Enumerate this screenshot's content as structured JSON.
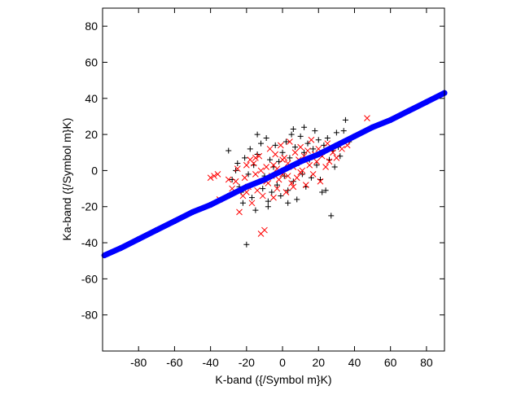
{
  "chart_data": {
    "type": "scatter",
    "title": "",
    "xlabel": "K-band ({/Symbol m}K)",
    "ylabel": "Ka-band ({/Symbol m}K)",
    "xlim": [
      -100,
      90
    ],
    "ylim": [
      -100,
      90
    ],
    "x_ticks": [
      -80,
      -60,
      -40,
      -20,
      0,
      20,
      40,
      60,
      80
    ],
    "y_ticks": [
      -80,
      -60,
      -40,
      -20,
      0,
      20,
      40,
      60,
      80
    ],
    "grid": false,
    "legend": "none",
    "series": [
      {
        "marker": "plus",
        "color": "#000000",
        "points": [
          [
            -30,
            11
          ],
          [
            -28,
            -5
          ],
          [
            -25,
            4
          ],
          [
            -24,
            -9
          ],
          [
            -22,
            -18
          ],
          [
            -21,
            7
          ],
          [
            -20,
            -41
          ],
          [
            -18,
            12
          ],
          [
            -17,
            -15
          ],
          [
            -16,
            3
          ],
          [
            -15,
            -22
          ],
          [
            -14,
            9
          ],
          [
            -13,
            -6
          ],
          [
            -12,
            15
          ],
          [
            -11,
            -10
          ],
          [
            -10,
            -3
          ],
          [
            -9,
            18
          ],
          [
            -8,
            -17
          ],
          [
            -7,
            6
          ],
          [
            -6,
            -12
          ],
          [
            -5,
            2
          ],
          [
            -4,
            14
          ],
          [
            -3,
            -8
          ],
          [
            -2,
            5
          ],
          [
            -1,
            -14
          ],
          [
            0,
            10
          ],
          [
            1,
            -3
          ],
          [
            2,
            16
          ],
          [
            3,
            -11
          ],
          [
            4,
            7
          ],
          [
            5,
            20
          ],
          [
            6,
            -6
          ],
          [
            7,
            13
          ],
          [
            8,
            -16
          ],
          [
            9,
            4
          ],
          [
            10,
            19
          ],
          [
            11,
            -2
          ],
          [
            12,
            10
          ],
          [
            13,
            -9
          ],
          [
            14,
            15
          ],
          [
            15,
            6
          ],
          [
            16,
            -4
          ],
          [
            17,
            12
          ],
          [
            18,
            22
          ],
          [
            19,
            3
          ],
          [
            20,
            17
          ],
          [
            21,
            -5
          ],
          [
            22,
            9
          ],
          [
            23,
            14
          ],
          [
            24,
            -11
          ],
          [
            25,
            18
          ],
          [
            26,
            6
          ],
          [
            27,
            -25
          ],
          [
            28,
            11
          ],
          [
            29,
            2
          ],
          [
            30,
            21
          ],
          [
            31,
            13
          ],
          [
            32,
            8
          ],
          [
            34,
            22
          ],
          [
            35,
            28
          ],
          [
            37,
            16
          ],
          [
            -19,
            -2
          ],
          [
            -26,
            0
          ],
          [
            -23,
            -12
          ],
          [
            -8,
            -20
          ],
          [
            3,
            -18
          ],
          [
            12,
            24
          ],
          [
            22,
            -12
          ],
          [
            6,
            23
          ],
          [
            -14,
            20
          ]
        ]
      },
      {
        "marker": "cross",
        "color": "#ff0000",
        "points": [
          [
            -40,
            -4
          ],
          [
            -38,
            -3
          ],
          [
            -36,
            -2
          ],
          [
            -35,
            -16
          ],
          [
            -30,
            -5
          ],
          [
            -28,
            -10
          ],
          [
            -26,
            -6
          ],
          [
            -25,
            1
          ],
          [
            -24,
            -23
          ],
          [
            -22,
            -14
          ],
          [
            -21,
            -4
          ],
          [
            -20,
            3
          ],
          [
            -19,
            -9
          ],
          [
            -18,
            6
          ],
          [
            -17,
            -18
          ],
          [
            -16,
            4
          ],
          [
            -15,
            -2
          ],
          [
            -14,
            -11
          ],
          [
            -13,
            8
          ],
          [
            -12,
            -35
          ],
          [
            -11,
            -14
          ],
          [
            -10,
            -33
          ],
          [
            -9,
            2
          ],
          [
            -8,
            -7
          ],
          [
            -7,
            12
          ],
          [
            -6,
            -3
          ],
          [
            -5,
            -15
          ],
          [
            -4,
            9
          ],
          [
            -3,
            1
          ],
          [
            -2,
            -5
          ],
          [
            -1,
            14
          ],
          [
            0,
            -2
          ],
          [
            1,
            7
          ],
          [
            2,
            -12
          ],
          [
            3,
            4
          ],
          [
            4,
            16
          ],
          [
            5,
            -7
          ],
          [
            6,
            2
          ],
          [
            7,
            10
          ],
          [
            8,
            -4
          ],
          [
            9,
            6
          ],
          [
            10,
            13
          ],
          [
            11,
            0
          ],
          [
            12,
            8
          ],
          [
            13,
            -8
          ],
          [
            14,
            11
          ],
          [
            15,
            3
          ],
          [
            16,
            17
          ],
          [
            17,
            -2
          ],
          [
            18,
            9
          ],
          [
            19,
            5
          ],
          [
            20,
            12
          ],
          [
            21,
            -6
          ],
          [
            22,
            8
          ],
          [
            24,
            2
          ],
          [
            25,
            15
          ],
          [
            26,
            5
          ],
          [
            28,
            10
          ],
          [
            30,
            7
          ],
          [
            33,
            12
          ],
          [
            36,
            14
          ],
          [
            47,
            29
          ],
          [
            -3,
            -10
          ],
          [
            -9,
            -6
          ],
          [
            6,
            -9
          ],
          [
            0,
            6
          ],
          [
            -5,
            3
          ],
          [
            3,
            -3
          ],
          [
            -12,
            0
          ],
          [
            10,
            -1
          ],
          [
            -20,
            -12
          ],
          [
            -15,
            7
          ]
        ]
      },
      {
        "marker": "circle",
        "color": "#0000ff",
        "points": [
          [
            -99,
            -47
          ],
          [
            -90,
            -43
          ],
          [
            -80,
            -38
          ],
          [
            -70,
            -33
          ],
          [
            -60,
            -28
          ],
          [
            -50,
            -23
          ],
          [
            -40,
            -19
          ],
          [
            -30,
            -14
          ],
          [
            -20,
            -9
          ],
          [
            -10,
            -5
          ],
          [
            0,
            0
          ],
          [
            10,
            5
          ],
          [
            20,
            9
          ],
          [
            30,
            14
          ],
          [
            40,
            19
          ],
          [
            50,
            24
          ],
          [
            60,
            28
          ],
          [
            70,
            33
          ],
          [
            80,
            38
          ],
          [
            90,
            43
          ]
        ]
      }
    ]
  }
}
